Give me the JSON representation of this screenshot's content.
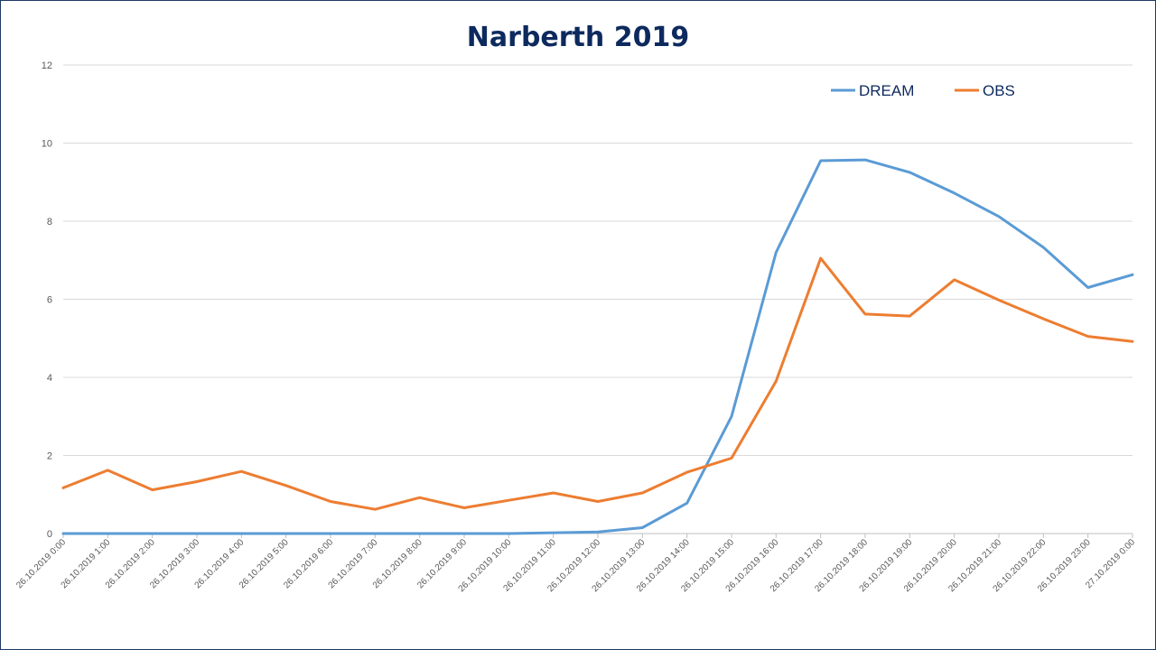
{
  "chart_data": {
    "type": "line",
    "title": "Narberth 2019",
    "xlabel": "",
    "ylabel": "",
    "ylim": [
      0,
      12
    ],
    "yticks": [
      0,
      2,
      4,
      6,
      8,
      10,
      12
    ],
    "grid": true,
    "legend_position": "top-right",
    "categories": [
      "26.10.2019 0:00",
      "26.10.2019 1:00",
      "26.10.2019 2:00",
      "26.10.2019 3:00",
      "26.10.2019 4:00",
      "26.10.2019 5:00",
      "26.10.2019 6:00",
      "26.10.2019 7:00",
      "26.10.2019 8:00",
      "26.10.2019 9:00",
      "26.10.2019 10:00",
      "26.10.2019 11:00",
      "26.10.2019 12:00",
      "26.10.2019 13:00",
      "26.10.2019 14:00",
      "26.10.2019 15:00",
      "26.10.2019 16:00",
      "26.10.2019 17:00",
      "26.10.2019 18:00",
      "26.10.2019 19:00",
      "26.10.2019 20:00",
      "26.10.2019 21:00",
      "26.10.2019 22:00",
      "26.10.2019 23:00",
      "27.10.2019 0:00"
    ],
    "series": [
      {
        "name": "DREAM",
        "color": "#5b9bd5",
        "values": [
          0,
          0,
          0,
          0,
          0,
          0,
          0,
          0,
          0,
          0,
          0,
          0.02,
          0.04,
          0.15,
          0.78,
          3.0,
          7.2,
          9.55,
          9.57,
          9.25,
          8.72,
          8.12,
          7.33,
          6.3,
          6.63
        ]
      },
      {
        "name": "OBS",
        "color": "#ed7d31",
        "values": [
          1.17,
          1.62,
          1.12,
          1.33,
          1.59,
          1.23,
          0.82,
          0.62,
          0.92,
          0.66,
          0.85,
          1.04,
          0.82,
          1.04,
          1.57,
          1.93,
          3.9,
          7.05,
          5.62,
          5.57,
          6.5,
          5.98,
          5.5,
          5.05,
          4.92
        ]
      }
    ]
  }
}
